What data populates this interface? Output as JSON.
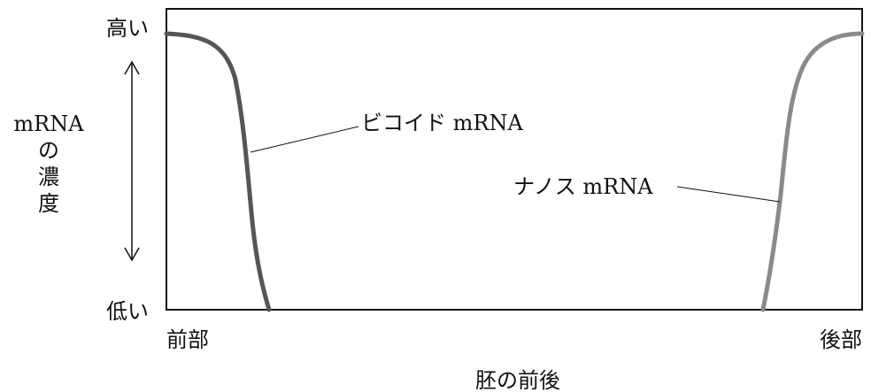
{
  "y_axis": {
    "high_label": "高い",
    "low_label": "低い",
    "title_line1": "mRNA",
    "title_line2": "の",
    "title_line3": "濃",
    "title_line4": "度"
  },
  "x_axis": {
    "left_label": "前部",
    "right_label": "後部",
    "title": "胚の前後"
  },
  "curves": {
    "bicoid_label": "ビコイド mRNA",
    "nanos_label": "ナノス mRNA",
    "bicoid_color": "#555555",
    "nanos_color": "#8a8a8a"
  }
}
